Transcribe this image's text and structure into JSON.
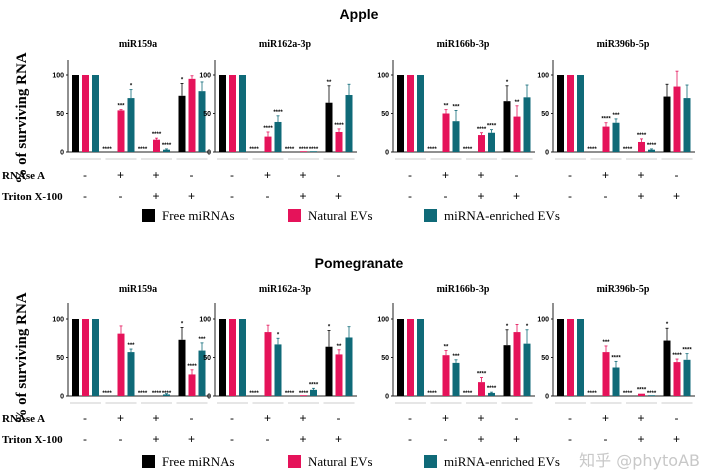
{
  "chart_data": [
    {
      "type": "bar",
      "title": "Apple",
      "ylabel": "% of surviving RNA",
      "ylim": [
        0,
        120
      ],
      "yticks": [
        0,
        50,
        100
      ],
      "conditions": {
        "RNAse A": [
          "-",
          "+",
          "+",
          "-"
        ],
        "Triton X-100": [
          "-",
          "-",
          "+",
          "+"
        ]
      },
      "legend": [
        "Free miRNAs",
        "Natural EVs",
        "miRNA-enriched EVs"
      ],
      "legend_placement": "bottom",
      "panels": [
        {
          "title": "miR159a",
          "series": [
            {
              "name": "Free miRNAs",
              "values": [
                100,
                0,
                0,
                73
              ],
              "errors": [
                0,
                0,
                0,
                16
              ],
              "sig": [
                "",
                "****",
                "****",
                "*"
              ]
            },
            {
              "name": "Natural EVs",
              "values": [
                100,
                54,
                16,
                95
              ],
              "errors": [
                0,
                1,
                2,
                4
              ],
              "sig": [
                "",
                "***",
                "****",
                ""
              ]
            },
            {
              "name": "miRNA-enriched EVs",
              "values": [
                100,
                70,
                3,
                79
              ],
              "errors": [
                0,
                11,
                1,
                12
              ],
              "sig": [
                "",
                "*",
                "****",
                ""
              ]
            }
          ]
        },
        {
          "title": "miR162a-3p",
          "series": [
            {
              "name": "Free miRNAs",
              "values": [
                100,
                0,
                0,
                64
              ],
              "errors": [
                0,
                0,
                0,
                22
              ],
              "sig": [
                "",
                "****",
                "****",
                "**"
              ]
            },
            {
              "name": "Natural EVs",
              "values": [
                100,
                20,
                1,
                26
              ],
              "errors": [
                0,
                6,
                0,
                4
              ],
              "sig": [
                "",
                "****",
                "****",
                "****"
              ]
            },
            {
              "name": "miRNA-enriched EVs",
              "values": [
                100,
                39,
                1,
                74
              ],
              "errors": [
                0,
                8,
                0,
                14
              ],
              "sig": [
                "",
                "****",
                "****",
                ""
              ]
            }
          ]
        },
        {
          "title": "miR166b-3p",
          "series": [
            {
              "name": "Free miRNAs",
              "values": [
                100,
                0,
                0,
                66
              ],
              "errors": [
                0,
                0,
                0,
                20
              ],
              "sig": [
                "",
                "****",
                "****",
                "*"
              ]
            },
            {
              "name": "Natural EVs",
              "values": [
                100,
                50,
                22,
                46
              ],
              "errors": [
                0,
                5,
                3,
                14
              ],
              "sig": [
                "",
                "**",
                "****",
                "**"
              ]
            },
            {
              "name": "miRNA-enriched EVs",
              "values": [
                100,
                40,
                25,
                71
              ],
              "errors": [
                0,
                14,
                4,
                16
              ],
              "sig": [
                "",
                "***",
                "****",
                ""
              ]
            }
          ]
        },
        {
          "title": "miR396b-5p",
          "series": [
            {
              "name": "Free miRNAs",
              "values": [
                100,
                0,
                0,
                72
              ],
              "errors": [
                0,
                0,
                0,
                16
              ],
              "sig": [
                "",
                "****",
                "****",
                ""
              ]
            },
            {
              "name": "Natural EVs",
              "values": [
                100,
                33,
                13,
                85
              ],
              "errors": [
                0,
                5,
                4,
                20
              ],
              "sig": [
                "",
                "****",
                "****",
                ""
              ]
            },
            {
              "name": "miRNA-enriched EVs",
              "values": [
                100,
                38,
                3,
                70
              ],
              "errors": [
                0,
                5,
                1,
                17
              ],
              "sig": [
                "",
                "***",
                "****",
                ""
              ]
            }
          ]
        }
      ]
    },
    {
      "type": "bar",
      "title": "Pomegranate",
      "ylabel": "% of surviving RNA",
      "ylim": [
        0,
        120
      ],
      "yticks": [
        0,
        50,
        100
      ],
      "conditions": {
        "RNAse A": [
          "-",
          "+",
          "+",
          "-"
        ],
        "Triton X-100": [
          "-",
          "-",
          "+",
          "+"
        ]
      },
      "legend": [
        "Free miRNAs",
        "Natural EVs",
        "miRNA-enriched EVs"
      ],
      "legend_placement": "bottom",
      "panels": [
        {
          "title": "miR159a",
          "series": [
            {
              "name": "Free miRNAs",
              "values": [
                100,
                0,
                0,
                73
              ],
              "errors": [
                0,
                0,
                0,
                16
              ],
              "sig": [
                "",
                "****",
                "****",
                "*"
              ]
            },
            {
              "name": "Natural EVs",
              "values": [
                100,
                81,
                0,
                28
              ],
              "errors": [
                0,
                10,
                0,
                6
              ],
              "sig": [
                "",
                "",
                "****",
                "****"
              ]
            },
            {
              "name": "miRNA-enriched EVs",
              "values": [
                100,
                57,
                2,
                59
              ],
              "errors": [
                0,
                4,
                1,
                10
              ],
              "sig": [
                "",
                "***",
                "****",
                "***"
              ]
            }
          ]
        },
        {
          "title": "miR162a-3p",
          "series": [
            {
              "name": "Free miRNAs",
              "values": [
                100,
                0,
                0,
                64
              ],
              "errors": [
                0,
                0,
                0,
                21
              ],
              "sig": [
                "",
                "****",
                "****",
                "*"
              ]
            },
            {
              "name": "Natural EVs",
              "values": [
                100,
                83,
                1,
                54
              ],
              "errors": [
                0,
                9,
                0,
                6
              ],
              "sig": [
                "",
                "",
                "****",
                "**"
              ]
            },
            {
              "name": "miRNA-enriched EVs",
              "values": [
                100,
                67,
                8,
                76
              ],
              "errors": [
                0,
                8,
                2,
                14
              ],
              "sig": [
                "",
                "*",
                "****",
                ""
              ]
            }
          ]
        },
        {
          "title": "miR166b-3p",
          "series": [
            {
              "name": "Free miRNAs",
              "values": [
                100,
                0,
                0,
                66
              ],
              "errors": [
                0,
                0,
                0,
                20
              ],
              "sig": [
                "",
                "****",
                "****",
                "*"
              ]
            },
            {
              "name": "Natural EVs",
              "values": [
                100,
                53,
                18,
                83
              ],
              "errors": [
                0,
                6,
                6,
                10
              ],
              "sig": [
                "",
                "**",
                "****",
                ""
              ]
            },
            {
              "name": "miRNA-enriched EVs",
              "values": [
                100,
                43,
                4,
                68
              ],
              "errors": [
                0,
                4,
                1,
                18
              ],
              "sig": [
                "",
                "***",
                "****",
                "*"
              ]
            }
          ]
        },
        {
          "title": "miR396b-5p",
          "series": [
            {
              "name": "Free miRNAs",
              "values": [
                100,
                0,
                0,
                72
              ],
              "errors": [
                0,
                0,
                0,
                16
              ],
              "sig": [
                "",
                "****",
                "****",
                "*"
              ]
            },
            {
              "name": "Natural EVs",
              "values": [
                100,
                57,
                3,
                44
              ],
              "errors": [
                0,
                8,
                0,
                4
              ],
              "sig": [
                "",
                "***",
                "****",
                "****"
              ]
            },
            {
              "name": "miRNA-enriched EVs",
              "values": [
                100,
                37,
                1,
                47
              ],
              "errors": [
                0,
                8,
                0,
                8
              ],
              "sig": [
                "",
                "****",
                "****",
                "****"
              ]
            }
          ]
        }
      ]
    }
  ],
  "colors": {
    "Free miRNAs": "#000000",
    "Natural EVs": "#e5135a",
    "miRNA-enriched EVs": "#0f6a78"
  },
  "watermark": "知乎 @phytoAB"
}
